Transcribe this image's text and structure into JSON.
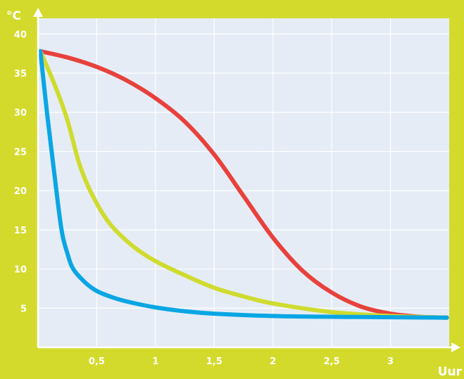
{
  "chart_data": {
    "type": "line",
    "xlabel": "Uur",
    "ylabel": "°C",
    "xlim": [
      0,
      3.5
    ],
    "ylim": [
      0,
      42
    ],
    "xticks": [
      {
        "value": 0.5,
        "label": "0,5"
      },
      {
        "value": 1,
        "label": "1"
      },
      {
        "value": 1.5,
        "label": "1,5"
      },
      {
        "value": 2,
        "label": "2"
      },
      {
        "value": 2.5,
        "label": "2,5"
      },
      {
        "value": 3,
        "label": "3"
      }
    ],
    "yticks": [
      {
        "value": 5,
        "label": "5"
      },
      {
        "value": 10,
        "label": "10"
      },
      {
        "value": 15,
        "label": "15"
      },
      {
        "value": 20,
        "label": "20"
      },
      {
        "value": 25,
        "label": "25"
      },
      {
        "value": 30,
        "label": "30"
      },
      {
        "value": 35,
        "label": "35"
      },
      {
        "value": 40,
        "label": "40"
      }
    ],
    "grid": true,
    "series": [
      {
        "color": "#e8413c",
        "x": [
          0.02,
          0.25,
          0.5,
          0.75,
          1.0,
          1.25,
          1.5,
          1.75,
          2.0,
          2.25,
          2.5,
          2.75,
          3.0,
          3.25,
          3.48
        ],
        "y": [
          37.8,
          37.0,
          35.8,
          34.1,
          31.8,
          28.8,
          24.6,
          19.3,
          14.0,
          9.8,
          7.0,
          5.2,
          4.3,
          3.9,
          3.8
        ]
      },
      {
        "color": "#cfdb2e",
        "x": [
          0.02,
          0.15,
          0.25,
          0.35,
          0.45,
          0.6,
          0.8,
          1.0,
          1.25,
          1.5,
          1.75,
          2.0,
          2.5,
          3.0,
          3.48
        ],
        "y": [
          37.8,
          33.2,
          29.0,
          23.5,
          19.8,
          16.0,
          13.0,
          11.0,
          9.2,
          7.6,
          6.5,
          5.6,
          4.5,
          4.0,
          3.8
        ]
      },
      {
        "color": "#0aa6e4",
        "x": [
          0.02,
          0.08,
          0.14,
          0.2,
          0.25,
          0.3,
          0.4,
          0.5,
          0.65,
          0.8,
          1.0,
          1.25,
          1.5,
          2.0,
          2.5,
          3.0,
          3.48
        ],
        "y": [
          37.8,
          29.5,
          22.0,
          15.0,
          12.0,
          10.0,
          8.3,
          7.2,
          6.3,
          5.7,
          5.1,
          4.6,
          4.3,
          4.0,
          3.9,
          3.85,
          3.8
        ]
      }
    ]
  }
}
